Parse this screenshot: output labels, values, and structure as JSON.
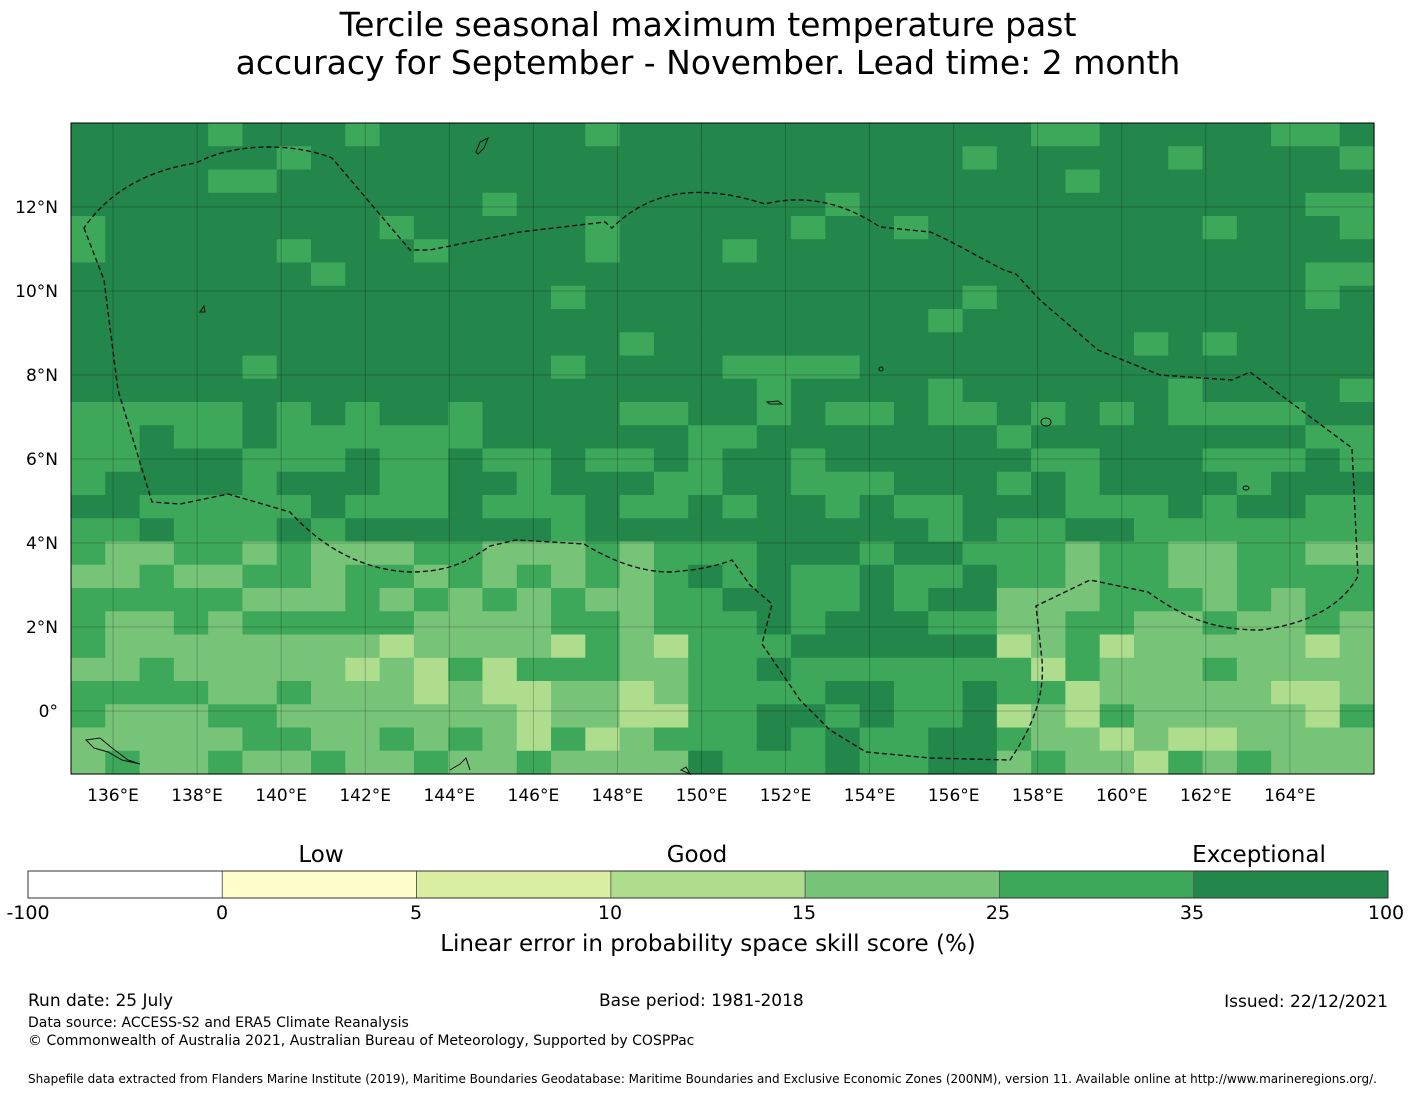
{
  "title_line1": "Tercile seasonal maximum temperature past",
  "title_line2": "accuracy for September - November. Lead time: 2 month",
  "map": {
    "lon_min": 135,
    "lon_max": 166,
    "lat_min": -1.5,
    "lat_max": 14,
    "lon_ticks": [
      "136°E",
      "138°E",
      "140°E",
      "142°E",
      "144°E",
      "146°E",
      "148°E",
      "150°E",
      "152°E",
      "154°E",
      "156°E",
      "158°E",
      "160°E",
      "162°E",
      "164°E"
    ],
    "lat_ticks": [
      "12°N",
      "10°N",
      "8°N",
      "6°N",
      "4°N",
      "2°N",
      "0°"
    ],
    "lat_tick_values": [
      12,
      10,
      8,
      6,
      4,
      2,
      0
    ]
  },
  "colorbar": {
    "categories": [
      "Low",
      "Good",
      "Exceptional"
    ],
    "ticks": [
      "-100",
      "0",
      "5",
      "10",
      "15",
      "25",
      "35",
      "100"
    ],
    "colors": [
      "#ffffff",
      "#fffdcc",
      "#d9eea0",
      "#aedd8e",
      "#77c479",
      "#3ea85a",
      "#23864a"
    ],
    "label": "Linear error in probability space skill score (%)"
  },
  "footer": {
    "run_date": "Run date: 25 July",
    "base_period": "Base period: 1981-2018",
    "issued": "Issued: 22/12/2021",
    "data_source": "Data source: ACCESS-S2 and ERA5 Climate Reanalysis",
    "copyright": "© Commonwealth of Australia 2021, Australian Bureau of Meteorology, Supported by COSPPac",
    "shapefile": "Shapefile data extracted from Flanders Marine Institute (2019), Maritime Boundaries Geodatabase: Maritime Boundaries and Exclusive Economic Zones (200NM), version 11. Available online at http://www.marineregions.org/."
  }
}
